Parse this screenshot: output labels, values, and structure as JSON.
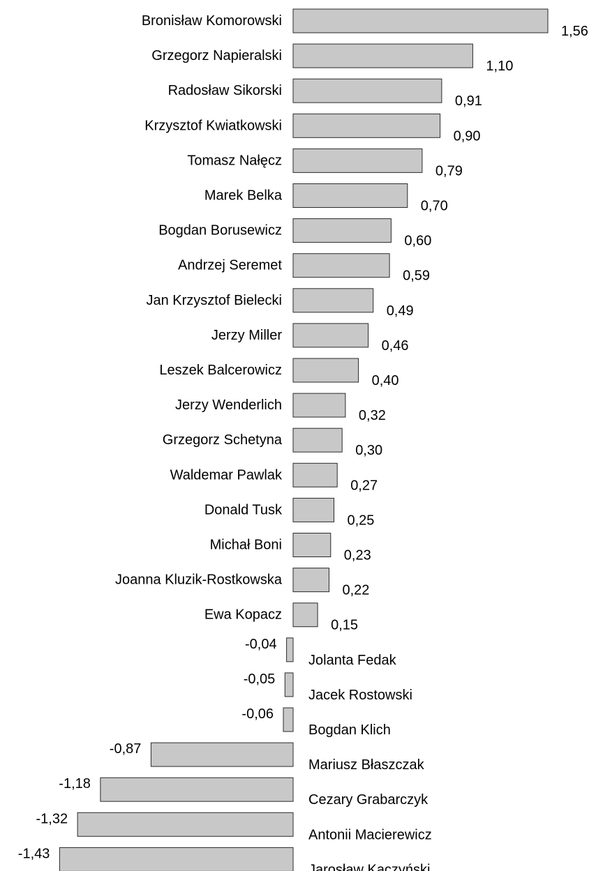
{
  "chart_data": {
    "type": "bar",
    "orientation": "horizontal",
    "bar_color": "#c8c8c8",
    "bar_edge_color": "#2a2a2a",
    "categories": [
      "Bronisław Komorowski",
      "Grzegorz Napieralski",
      "Radosław Sikorski",
      "Krzysztof Kwiatkowski",
      "Tomasz Nałęcz",
      "Marek Belka",
      "Bogdan Borusewicz",
      "Andrzej Seremet",
      "Jan Krzysztof Bielecki",
      "Jerzy Miller",
      "Leszek Balcerowicz",
      "Jerzy Wenderlich",
      "Grzegorz Schetyna",
      "Waldemar Pawlak",
      "Donald Tusk",
      "Michał Boni",
      "Joanna Kluzik-Rostkowska",
      "Ewa Kopacz",
      "Jolanta Fedak",
      "Jacek Rostowski",
      "Bogdan Klich",
      "Mariusz Błaszczak",
      "Cezary Grabarczyk",
      "Antonii Macierewicz",
      "Jarosław Kaczyński"
    ],
    "values": [
      1.56,
      1.1,
      0.91,
      0.9,
      0.79,
      0.7,
      0.6,
      0.59,
      0.49,
      0.46,
      0.4,
      0.32,
      0.3,
      0.27,
      0.25,
      0.23,
      0.22,
      0.15,
      -0.04,
      -0.05,
      -0.06,
      -0.87,
      -1.18,
      -1.32,
      -1.43
    ],
    "value_labels": [
      "1,56",
      "1,10",
      "0,91",
      "0,90",
      "0,79",
      "0,70",
      "0,60",
      "0,59",
      "0,49",
      "0,46",
      "0,40",
      "0,32",
      "0,30",
      "0,27",
      "0,25",
      "0,23",
      "0,22",
      "0,15",
      "-0,04",
      "-0,05",
      "-0,06",
      "-0,87",
      "-1,18",
      "-1,32",
      "-1,43"
    ],
    "title": "",
    "xlabel": "",
    "ylabel": "",
    "xlim": [
      -1.56,
      1.56
    ],
    "grid": false,
    "legend": "none"
  }
}
